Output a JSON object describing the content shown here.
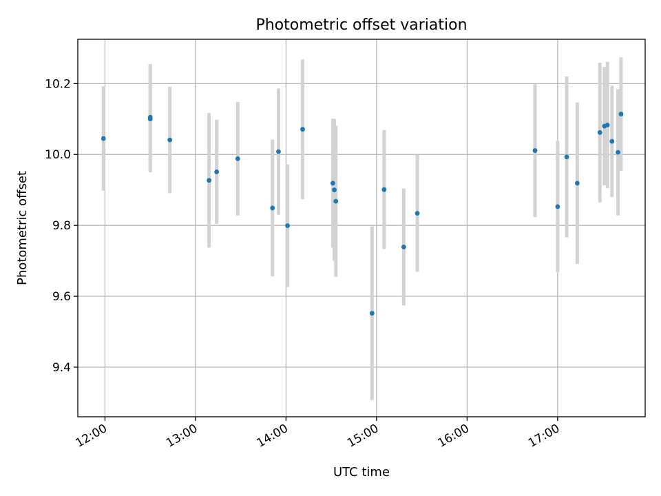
{
  "chart_data": {
    "type": "scatter",
    "title": "Photometric offset variation",
    "xlabel": "UTC time",
    "ylabel": "Photometric offset",
    "xlim": [
      "11:42",
      "17:58"
    ],
    "ylim": [
      9.26,
      10.325
    ],
    "grid": true,
    "colors": {
      "point": "#1f77b4",
      "errorbar": "#d3d3d3",
      "grid": "#b0b0b0"
    },
    "x_ticks": [
      "12:00",
      "13:00",
      "14:00",
      "15:00",
      "16:00",
      "17:00"
    ],
    "y_ticks": [
      "9.4",
      "9.6",
      "9.8",
      "10.0",
      "10.2"
    ],
    "points": [
      {
        "x": "11:59",
        "y": 10.045,
        "err": 0.147
      },
      {
        "x": "12:30",
        "y": 10.105,
        "err": 0.15
      },
      {
        "x": "12:30",
        "y": 10.1,
        "err": 0.15
      },
      {
        "x": "12:43",
        "y": 10.041,
        "err": 0.15
      },
      {
        "x": "13:09",
        "y": 9.927,
        "err": 0.19
      },
      {
        "x": "13:14",
        "y": 9.951,
        "err": 0.147
      },
      {
        "x": "13:28",
        "y": 9.988,
        "err": 0.16
      },
      {
        "x": "13:51",
        "y": 9.849,
        "err": 0.193
      },
      {
        "x": "13:55",
        "y": 10.008,
        "err": 0.178
      },
      {
        "x": "14:01",
        "y": 9.799,
        "err": 0.173
      },
      {
        "x": "14:11",
        "y": 10.071,
        "err": 0.197
      },
      {
        "x": "14:31",
        "y": 9.919,
        "err": 0.182
      },
      {
        "x": "14:32",
        "y": 9.9,
        "err": 0.2
      },
      {
        "x": "14:33",
        "y": 9.868,
        "err": 0.213
      },
      {
        "x": "14:57",
        "y": 9.552,
        "err": 0.245
      },
      {
        "x": "15:05",
        "y": 9.901,
        "err": 0.168
      },
      {
        "x": "15:18",
        "y": 9.739,
        "err": 0.165
      },
      {
        "x": "15:27",
        "y": 9.834,
        "err": 0.165
      },
      {
        "x": "16:45",
        "y": 10.011,
        "err": 0.188
      },
      {
        "x": "17:00",
        "y": 9.853,
        "err": 0.185
      },
      {
        "x": "17:06",
        "y": 9.993,
        "err": 0.227
      },
      {
        "x": "17:13",
        "y": 9.919,
        "err": 0.228
      },
      {
        "x": "17:28",
        "y": 10.062,
        "err": 0.197
      },
      {
        "x": "17:31",
        "y": 10.08,
        "err": 0.167
      },
      {
        "x": "17:33",
        "y": 10.083,
        "err": 0.178
      },
      {
        "x": "17:36",
        "y": 10.037,
        "err": 0.157
      },
      {
        "x": "17:40",
        "y": 10.006,
        "err": 0.178
      },
      {
        "x": "17:42",
        "y": 10.114,
        "err": 0.16
      }
    ]
  }
}
